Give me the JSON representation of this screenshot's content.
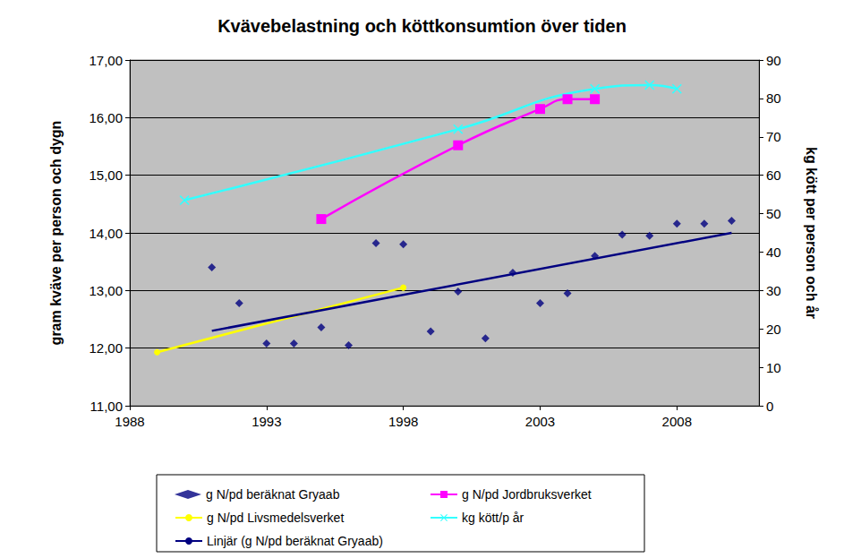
{
  "chart_data": {
    "type": "line",
    "title": "Kvävebelastning och köttkonsumtion över tiden",
    "y_label": "gram kväve per person och dygn",
    "y2_label": "kg kött per person och år",
    "xlim": [
      1988,
      2011
    ],
    "xticks": [
      1988,
      1993,
      1998,
      2003,
      2008
    ],
    "ylim": [
      11,
      17
    ],
    "yticks": [
      {
        "value": 11,
        "label": "11,00"
      },
      {
        "value": 12,
        "label": "12,00"
      },
      {
        "value": 13,
        "label": "13,00"
      },
      {
        "value": 14,
        "label": "14,00"
      },
      {
        "value": 15,
        "label": "15,00"
      },
      {
        "value": 16,
        "label": "16,00"
      },
      {
        "value": 17,
        "label": "17,00"
      }
    ],
    "y2lim": [
      0,
      90
    ],
    "y2ticks": [
      0,
      10,
      20,
      30,
      40,
      50,
      60,
      70,
      80,
      90
    ],
    "grid": true,
    "legend": "bottom",
    "series": [
      {
        "name": "g N/pd beräknat Gryaab",
        "type": "scatter",
        "color": "#000080",
        "marker": "diamond",
        "x": [
          1991,
          1992,
          1993,
          1994,
          1995,
          1996,
          1997,
          1998,
          1999,
          2000,
          2001,
          2002,
          2003,
          2004,
          2005,
          2006,
          2007,
          2008,
          2009,
          2010
        ],
        "values": [
          13.4,
          12.78,
          12.08,
          12.08,
          12.36,
          12.05,
          13.82,
          13.8,
          12.29,
          12.98,
          12.17,
          13.31,
          12.78,
          12.95,
          13.6,
          13.97,
          13.95,
          14.16,
          14.16,
          14.21
        ]
      },
      {
        "name": "g N/pd Jordbruksverket",
        "type": "line",
        "color": "#ff00ff",
        "marker": "square",
        "line_style": "smooth",
        "x": [
          1995,
          2000,
          2003,
          2004,
          2005
        ],
        "values": [
          14.24,
          15.52,
          16.15,
          16.32,
          16.32
        ]
      },
      {
        "name": "g N/pd Livsmedelsverket",
        "type": "line",
        "color": "#ffff00",
        "marker": "circle",
        "line_style": "solid",
        "x": [
          1989,
          1998
        ],
        "values": [
          11.93,
          13.05
        ]
      },
      {
        "name": "kg kött/p år",
        "type": "line",
        "color": "#33ffff",
        "marker": "x",
        "line_style": "smooth",
        "axis": "y2",
        "x": [
          1990,
          2000,
          2005,
          2007,
          2008
        ],
        "values": [
          53.5,
          72,
          82.5,
          83.5,
          82.5
        ]
      },
      {
        "name": "Linjär (g N/pd beräknat Gryaab)",
        "type": "line",
        "color": "#000080",
        "marker": "none",
        "line_style": "solid",
        "x": [
          1991,
          2010
        ],
        "values": [
          12.3,
          14.0
        ]
      }
    ]
  }
}
